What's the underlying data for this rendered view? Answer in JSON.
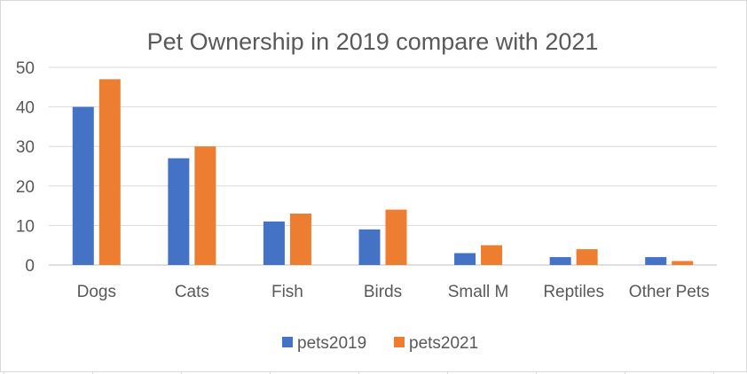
{
  "chart_data": {
    "type": "bar",
    "title": "Pet Ownership in 2019 compare with 2021",
    "categories": [
      "Dogs",
      "Cats",
      "Fish",
      "Birds",
      "Small M",
      "Reptiles",
      "Other Pets"
    ],
    "series": [
      {
        "name": "pets2019",
        "values": [
          40,
          27,
          11,
          9,
          3,
          2,
          2
        ],
        "color": "#4472c4"
      },
      {
        "name": "pets2021",
        "values": [
          47,
          30,
          13,
          14,
          5,
          4,
          1
        ],
        "color": "#ed7d31"
      }
    ],
    "ylim": [
      0,
      50
    ],
    "yticks": [
      "0",
      "10",
      "20",
      "30",
      "40",
      "50"
    ],
    "grid": true,
    "legend": "bottom"
  }
}
